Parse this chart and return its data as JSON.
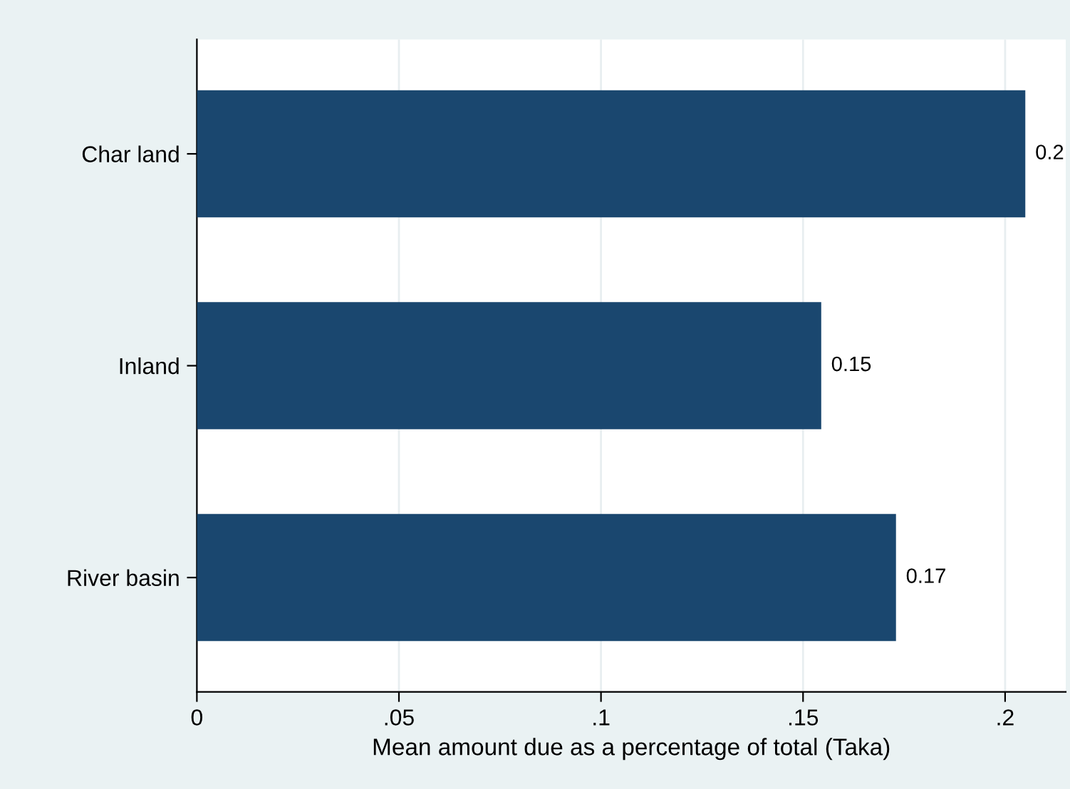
{
  "chart_data": {
    "type": "bar",
    "orientation": "horizontal",
    "xlabel": "Mean amount due as a percentage of total (Taka)",
    "categories": [
      "Char land",
      "Inland",
      "River basin"
    ],
    "values": [
      0.205,
      0.1545,
      0.173
    ],
    "value_labels": [
      "0.2",
      "0.15",
      "0.17"
    ],
    "color": "#1a476f",
    "xlim": [
      0,
      0.215
    ],
    "xticks": [
      0,
      {
        "value": 0.05,
        "label": ".05"
      },
      {
        "value": 0.1,
        "label": ".1"
      },
      {
        "value": 0.15,
        "label": ".15"
      },
      {
        "value": 0.2,
        "label": ".2"
      }
    ],
    "grid": "x",
    "legend": false
  }
}
